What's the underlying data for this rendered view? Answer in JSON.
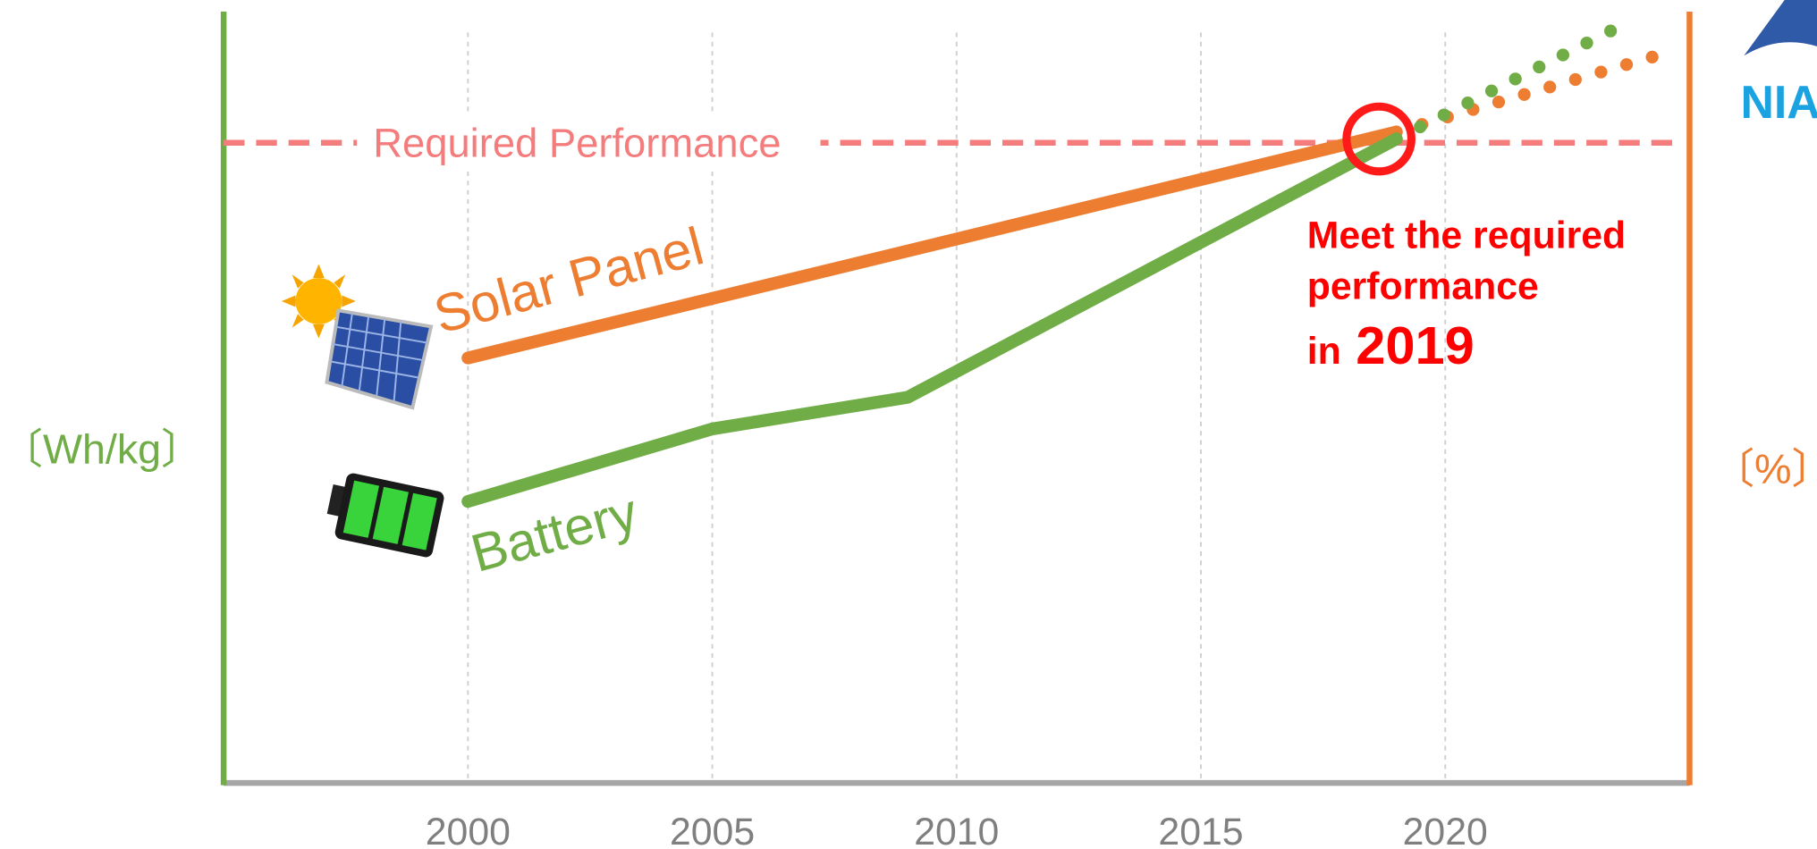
{
  "chart_data": {
    "type": "line",
    "y_label": "〔Wh/kg〕",
    "y2_label": "〔%〕",
    "xlim": [
      1995,
      2025
    ],
    "xticks": [
      2000,
      2005,
      2010,
      2015,
      2020
    ],
    "ylim": [
      0,
      100
    ],
    "grid": true,
    "threshold": {
      "label": "Required Performance",
      "value": 83,
      "color": "#f47c7c"
    },
    "series": [
      {
        "name": "Solar Panel",
        "color": "#ed7d31",
        "x": [
          2000,
          2019
        ],
        "values": [
          55.1,
          84.4
        ],
        "projection": {
          "x": [
            2019,
            2024.5
          ],
          "values": [
            84.4,
            94.6
          ]
        }
      },
      {
        "name": "Battery",
        "color": "#70ad47",
        "x": [
          2000,
          2005,
          2009,
          2019
        ],
        "values": [
          36.5,
          45.9,
          50,
          83.5
        ],
        "projection": {
          "x": [
            2019,
            2023.7
          ],
          "values": [
            83.5,
            98.5
          ]
        }
      }
    ],
    "annotation": {
      "lines": [
        "Meet the required",
        "performance",
        "in"
      ],
      "year": "2019",
      "color": "#ff0000"
    },
    "logo_text": "NIA"
  }
}
